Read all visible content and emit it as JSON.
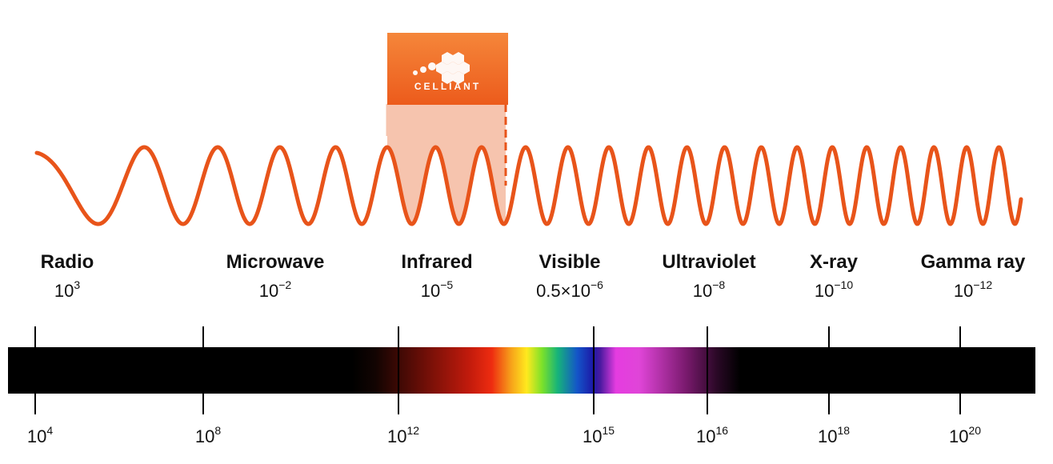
{
  "brand": {
    "name": "CELLIANT"
  },
  "bands": [
    {
      "name": "Radio",
      "wavelength_base": "10",
      "wavelength_exp": "3"
    },
    {
      "name": "Microwave",
      "wavelength_base": "10",
      "wavelength_exp": "−2"
    },
    {
      "name": "Infrared",
      "wavelength_base": "10",
      "wavelength_exp": "−5"
    },
    {
      "name": "Visible",
      "wavelength_base": "0.5×10",
      "wavelength_exp": "−6"
    },
    {
      "name": "Ultraviolet",
      "wavelength_base": "10",
      "wavelength_exp": "−8"
    },
    {
      "name": "X-ray",
      "wavelength_base": "10",
      "wavelength_exp": "−10"
    },
    {
      "name": "Gamma ray",
      "wavelength_base": "10",
      "wavelength_exp": "−12"
    }
  ],
  "frequencies": [
    {
      "base": "10",
      "exp": "4"
    },
    {
      "base": "10",
      "exp": "8"
    },
    {
      "base": "10",
      "exp": "12"
    },
    {
      "base": "10",
      "exp": "15"
    },
    {
      "base": "10",
      "exp": "16"
    },
    {
      "base": "10",
      "exp": "18"
    },
    {
      "base": "10",
      "exp": "20"
    }
  ],
  "colors": {
    "wave": "#e8541a",
    "highlight": "#f6c4ae",
    "brand": "#ec5b1c",
    "bar": "#000000"
  }
}
